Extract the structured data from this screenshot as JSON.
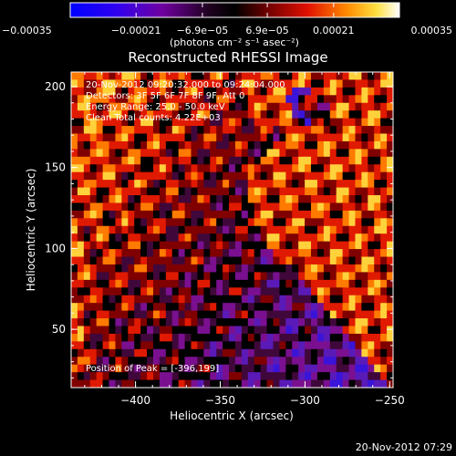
{
  "chart_data": {
    "type": "heatmap",
    "title": "Reconstructed RHESSI Image",
    "xlabel": "Heliocentric X (arcsec)",
    "ylabel": "Heliocentric Y (arcsec)",
    "xlim": [
      -438,
      -248
    ],
    "ylim": [
      14,
      209
    ],
    "x_ticks": [
      -400,
      -350,
      -300,
      -250
    ],
    "x_tick_labels": [
      "−400",
      "−350",
      "−300",
      "−250"
    ],
    "y_ticks": [
      50,
      100,
      150,
      200
    ],
    "y_tick_labels": [
      "50",
      "100",
      "150",
      "200"
    ],
    "colorbar": {
      "units": "(photons cm⁻² s⁻¹ asec⁻²)",
      "min": -0.00035,
      "max": 0.00035,
      "ticks": [
        -0.00035,
        -0.00021,
        -6.9e-05,
        6.9e-05,
        0.00021,
        0.00035
      ],
      "tick_labels": [
        "−0.00035",
        "−0.00021",
        "−6.9e−05",
        "6.9e−05",
        "0.00021",
        "0.00035"
      ]
    },
    "annotations": [
      "20-Nov-2012 09:20:32.000 to 09:24:04.000",
      "Detectors: 3F 5F 6F 7F 8F 9F, Att 0",
      "Energy Range: 25.0 - 50.0 keV",
      "Clean     Total counts: 4.22E+03"
    ],
    "peak_text": "Position of Peak = [-396,199]",
    "grid": false,
    "colormap": [
      "#0000ff",
      "#6a00c8",
      "#2a002a",
      "#000000",
      "#7a0000",
      "#ff2a00",
      "#ffa000",
      "#ffff50",
      "#ffffff"
    ],
    "image_rows": [
      "888800000000000000000003222222222222222222222228888",
      "888000000000000000000000002222222222222222222222888",
      "888000000000000000000000000032222221112322222222288",
      "880000000000000000000000000022222211000022222222228",
      "880000000000000000000000000002222221000002322222222",
      "880000000000000000000000000002222221100002222222222",
      "880000000000000000000000000002222222210002222222222",
      "880000000000000000000000000000000222222222222222222",
      "880000000000000000000000000000000222222222222222222",
      "880000000000000000000000000000003232222222222222222",
      "880000000000000000000000000000022222222222222222222",
      "880000000000000000000000000000223222222222222222222",
      "880000000000000000000000000003222222222222222222222",
      "880000000000000000000000000022222222222222222222222",
      "880000000000000000000000000022222222222222222222222",
      "880000000000000000000000000022222222222222222222222",
      "880000000000000000000000000022222222222222222222222",
      "880000000000000000000000000022222222222222222222222",
      "880000000000000000000000000022222222222222222222222",
      "880000000000000000000000000022222222222222222222222",
      "880000000000000000000000000002222222222222222222222",
      "880000000000000000000000000000222222222222222222222",
      "880000000000000000000000000000022222222222222222222",
      "880000000000000000000000000000002222222222222222222",
      "880000000000000000000000000000000022222222222222222",
      "880000000000000000000000000000000002222222222222222",
      "880000000000000000000000000000000000222222222222222",
      "880000000000000000000000000000000000022222222222222",
      "880000000000000000000000000000000000002222222222222",
      "880000000000000000000000000000000000000222222222222",
      "880000000000000000000000000000000000000022222222222",
      "880000000000000000000000000000000000000002222222222",
      "880000000000000000000000000000000000000000222222222",
      "880000000000000000000000000000000000000000022222222",
      "880000000000000000000000000000000000000000002222222",
      "880000000000000000000000000000000000000000000222222",
      "880000000000000000000000000000000000000000000022222",
      "880000000000000000000000000000000000000000000002222",
      "880000000000000000000000000000000000000000000000222",
      "880000000000000000000000000000000000000000000000022",
      "880000000000000000000000000000000000000000000000002"
    ]
  },
  "footer_timestamp": "20-Nov-2012 07:29"
}
